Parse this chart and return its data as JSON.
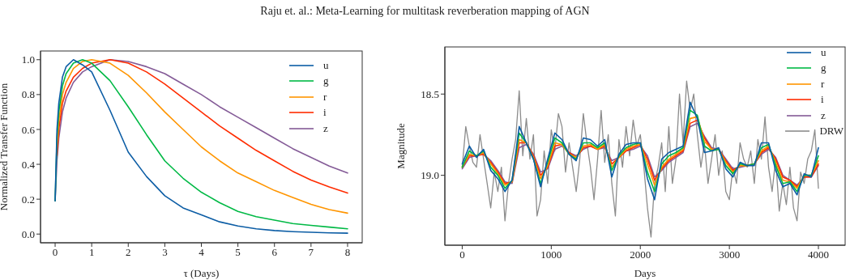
{
  "chart_data": [
    {
      "type": "line",
      "title": "Raju et. al.: Meta-Learning for multitask reverberation mapping of AGN",
      "xlabel": "τ (Days)",
      "ylabel": "Normalized Transfer Function",
      "legend": "top right",
      "xlim": [
        -0.4,
        8.4
      ],
      "ylim": [
        -0.05,
        1.05
      ],
      "xticks": [
        0,
        1,
        2,
        3,
        4,
        5,
        6,
        7,
        8
      ],
      "yticks": [
        {
          "value": 0,
          "label": "0.0"
        },
        {
          "value": 0.2,
          "label": "0.2"
        },
        {
          "value": 0.4,
          "label": "0.4"
        },
        {
          "value": 0.6,
          "label": "0.6"
        },
        {
          "value": 0.8,
          "label": "0.8"
        },
        {
          "value": 1,
          "label": "1.0"
        }
      ],
      "x": [
        0,
        0.05,
        0.1,
        0.2,
        0.3,
        0.5,
        0.75,
        1,
        1.5,
        2,
        2.5,
        3,
        3.5,
        4,
        4.5,
        5,
        5.5,
        6,
        6.5,
        7,
        7.5,
        8
      ],
      "series": [
        {
          "name": "u",
          "color": "#0c5da5",
          "values": [
            0.19,
            0.6,
            0.75,
            0.9,
            0.96,
            1.0,
            0.97,
            0.93,
            0.71,
            0.47,
            0.33,
            0.22,
            0.15,
            0.11,
            0.07,
            0.046,
            0.03,
            0.02,
            0.014,
            0.01,
            0.007,
            0.005
          ]
        },
        {
          "name": "g",
          "color": "#00b945",
          "values": [
            0.19,
            0.55,
            0.7,
            0.85,
            0.92,
            0.98,
            1.0,
            0.98,
            0.88,
            0.73,
            0.57,
            0.42,
            0.32,
            0.24,
            0.18,
            0.13,
            0.1,
            0.08,
            0.06,
            0.05,
            0.04,
            0.03
          ]
        },
        {
          "name": "r",
          "color": "#ff9500",
          "values": [
            null,
            0.5,
            0.65,
            0.8,
            0.87,
            0.95,
            0.99,
            1.0,
            0.98,
            0.91,
            0.81,
            0.7,
            0.6,
            0.5,
            0.42,
            0.35,
            0.3,
            0.25,
            0.21,
            0.17,
            0.14,
            0.12
          ]
        },
        {
          "name": "i",
          "color": "#ff2c00",
          "values": [
            null,
            0.45,
            0.6,
            0.75,
            0.82,
            0.9,
            0.95,
            0.98,
            1.0,
            0.98,
            0.93,
            0.86,
            0.78,
            0.7,
            0.62,
            0.55,
            0.48,
            0.42,
            0.36,
            0.31,
            0.27,
            0.235
          ]
        },
        {
          "name": "z",
          "color": "#845b97",
          "values": [
            0.19,
            0.42,
            0.55,
            0.7,
            0.78,
            0.87,
            0.93,
            0.96,
            1.0,
            0.99,
            0.96,
            0.92,
            0.86,
            0.8,
            0.73,
            0.67,
            0.61,
            0.55,
            0.49,
            0.44,
            0.39,
            0.35
          ]
        }
      ]
    },
    {
      "type": "line",
      "xlabel": "Days",
      "ylabel": "Magnitude",
      "legend": "top right",
      "xlim": [
        -195,
        4300
      ],
      "ylim": [
        19.43,
        18.21
      ],
      "xticks": [
        0,
        1000,
        2000,
        3000,
        4000
      ],
      "yticks": [
        18.5,
        {
          "value": 19,
          "label": "19.0"
        }
      ],
      "x": [
        0,
        80,
        160,
        240,
        320,
        400,
        480,
        560,
        640,
        720,
        800,
        880,
        960,
        1040,
        1120,
        1200,
        1280,
        1360,
        1440,
        1520,
        1600,
        1680,
        1760,
        1840,
        1920,
        2000,
        2080,
        2160,
        2240,
        2320,
        2400,
        2480,
        2560,
        2640,
        2720,
        2800,
        2880,
        2960,
        3040,
        3120,
        3200,
        3280,
        3360,
        3440,
        3520,
        3600,
        3680,
        3760,
        3840,
        3920,
        4000
      ],
      "series": [
        {
          "name": "u",
          "color": "#0c5da5",
          "values": [
            18.93,
            18.82,
            18.89,
            18.84,
            18.97,
            19.02,
            19.1,
            19.03,
            18.7,
            18.8,
            18.9,
            19.07,
            18.9,
            18.74,
            18.78,
            18.87,
            18.91,
            18.77,
            18.78,
            18.82,
            18.78,
            19.01,
            18.87,
            18.81,
            18.8,
            18.8,
            19.02,
            19.15,
            18.9,
            18.86,
            18.84,
            18.82,
            18.55,
            18.65,
            18.86,
            18.85,
            18.83,
            18.96,
            19.01,
            18.92,
            18.94,
            18.94,
            18.8,
            18.8,
            18.97,
            19.07,
            19.05,
            19.12,
            18.99,
            19.01,
            18.83
          ]
        },
        {
          "name": "g",
          "color": "#00b945",
          "values": [
            18.95,
            18.85,
            18.88,
            18.85,
            18.95,
            19.0,
            19.08,
            19.03,
            18.74,
            18.8,
            18.9,
            19.05,
            18.92,
            18.77,
            18.8,
            18.87,
            18.9,
            18.8,
            18.8,
            18.83,
            18.8,
            18.97,
            18.88,
            18.83,
            18.81,
            18.8,
            18.98,
            19.1,
            18.93,
            18.88,
            18.86,
            18.83,
            18.6,
            18.63,
            18.82,
            18.85,
            18.84,
            18.94,
            18.99,
            18.93,
            18.94,
            18.93,
            18.83,
            18.81,
            18.94,
            19.05,
            19.04,
            19.1,
            19.0,
            19.0,
            18.88
          ]
        },
        {
          "name": "r",
          "color": "#ff9500",
          "values": [
            18.95,
            18.87,
            18.88,
            18.86,
            18.93,
            18.99,
            19.06,
            19.04,
            18.78,
            18.8,
            18.89,
            19.02,
            18.94,
            18.8,
            18.81,
            18.87,
            18.89,
            18.82,
            18.81,
            18.84,
            18.81,
            18.95,
            18.89,
            18.84,
            18.82,
            18.81,
            18.93,
            19.06,
            18.95,
            18.9,
            18.87,
            18.84,
            18.65,
            18.64,
            18.79,
            18.84,
            18.84,
            18.92,
            18.98,
            18.94,
            18.94,
            18.93,
            18.85,
            18.82,
            18.92,
            19.03,
            19.04,
            19.08,
            19.0,
            19.0,
            18.91
          ]
        },
        {
          "name": "i",
          "color": "#ff2c00",
          "values": [
            18.95,
            18.88,
            18.88,
            18.87,
            18.92,
            18.98,
            19.05,
            19.04,
            18.8,
            18.8,
            18.88,
            19.0,
            18.95,
            18.82,
            18.81,
            18.86,
            18.89,
            18.83,
            18.82,
            18.84,
            18.82,
            18.93,
            18.89,
            18.85,
            18.83,
            18.81,
            18.9,
            19.03,
            18.96,
            18.91,
            18.88,
            18.85,
            18.68,
            18.66,
            18.77,
            18.84,
            18.84,
            18.91,
            18.97,
            18.94,
            18.94,
            18.93,
            18.86,
            18.83,
            18.9,
            19.01,
            19.03,
            19.07,
            19.01,
            19.01,
            18.93
          ]
        },
        {
          "name": "z",
          "color": "#845b97",
          "values": [
            18.96,
            18.89,
            18.88,
            18.87,
            18.91,
            18.97,
            19.04,
            19.05,
            18.83,
            18.81,
            18.87,
            18.98,
            18.96,
            18.84,
            18.82,
            18.86,
            18.88,
            18.84,
            18.82,
            18.84,
            18.83,
            18.91,
            18.89,
            18.85,
            18.84,
            18.82,
            18.88,
            19.01,
            18.97,
            18.92,
            18.89,
            18.86,
            18.7,
            18.68,
            18.76,
            18.83,
            18.84,
            18.9,
            18.96,
            18.95,
            18.94,
            18.93,
            18.87,
            18.84,
            18.89,
            19.0,
            19.03,
            19.06,
            19.01,
            19.01,
            18.94
          ]
        },
        {
          "name": "DRW",
          "color": "#8c8c8c",
          "x": [
            0,
            40,
            80,
            120,
            160,
            200,
            240,
            280,
            320,
            360,
            400,
            440,
            480,
            520,
            560,
            600,
            640,
            680,
            720,
            760,
            800,
            840,
            880,
            920,
            960,
            1000,
            1040,
            1080,
            1120,
            1160,
            1200,
            1240,
            1280,
            1320,
            1360,
            1400,
            1440,
            1480,
            1520,
            1560,
            1600,
            1640,
            1680,
            1720,
            1760,
            1800,
            1840,
            1880,
            1920,
            1960,
            2000,
            2040,
            2080,
            2120,
            2160,
            2200,
            2240,
            2280,
            2320,
            2360,
            2400,
            2440,
            2480,
            2520,
            2560,
            2600,
            2640,
            2680,
            2720,
            2760,
            2800,
            2840,
            2880,
            2920,
            2960,
            3000,
            3040,
            3080,
            3120,
            3160,
            3200,
            3240,
            3280,
            3320,
            3360,
            3400,
            3440,
            3480,
            3520,
            3560,
            3600,
            3640,
            3680,
            3720,
            3760,
            3800,
            3840,
            3880,
            3920,
            3960,
            4000
          ],
          "values": [
            18.95,
            18.7,
            18.82,
            18.92,
            18.95,
            18.75,
            18.9,
            19.05,
            19.2,
            18.98,
            19.1,
            18.95,
            19.28,
            19.05,
            18.9,
            18.78,
            18.48,
            18.88,
            18.65,
            18.9,
            18.75,
            19.25,
            19.15,
            18.85,
            19.05,
            18.72,
            18.85,
            18.62,
            18.7,
            18.98,
            18.8,
            18.95,
            19.1,
            18.9,
            18.62,
            18.8,
            18.95,
            19.15,
            18.9,
            18.6,
            18.92,
            18.75,
            19.05,
            19.25,
            18.78,
            18.95,
            18.7,
            18.88,
            18.66,
            18.82,
            18.75,
            18.95,
            19.2,
            19.38,
            19.05,
            18.95,
            18.8,
            19.1,
            18.7,
            19.05,
            18.9,
            18.5,
            18.8,
            18.42,
            18.6,
            18.5,
            18.75,
            18.95,
            18.8,
            19.05,
            18.9,
            18.75,
            19.0,
            18.85,
            19.1,
            19.15,
            18.95,
            19.05,
            18.8,
            18.9,
            18.95,
            18.85,
            19.05,
            18.78,
            18.9,
            18.64,
            18.95,
            19.1,
            18.9,
            19.22,
            19.05,
            19.18,
            18.95,
            19.2,
            19.28,
            18.98,
            19.05,
            18.9,
            18.85,
            18.72,
            19.08
          ]
        }
      ]
    }
  ]
}
